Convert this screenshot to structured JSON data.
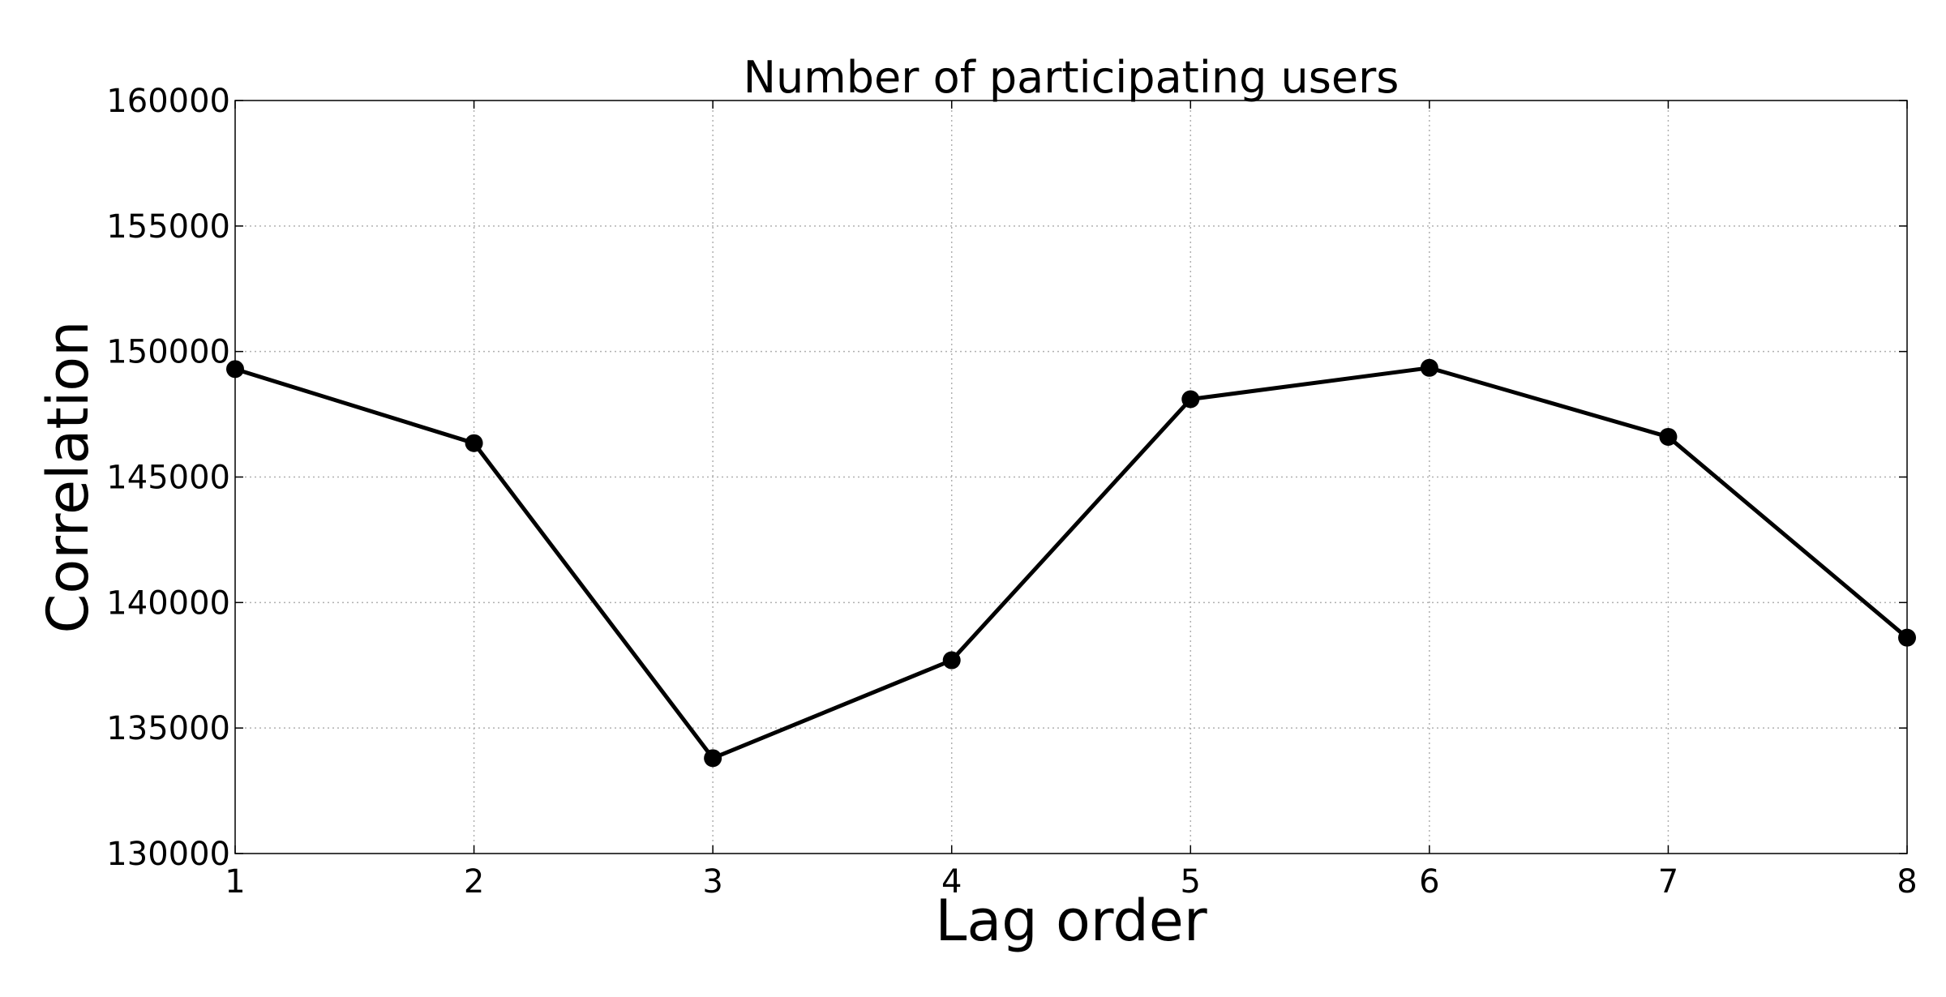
{
  "chart_data": {
    "type": "line",
    "title": "Number of participating users",
    "xlabel": "Lag order",
    "ylabel": "Correlation",
    "x": [
      1,
      2,
      3,
      4,
      5,
      6,
      7,
      8
    ],
    "series": [
      {
        "values": [
          149300,
          146350,
          133800,
          137700,
          148100,
          149350,
          146600,
          138600
        ]
      }
    ],
    "xlim": [
      1,
      8
    ],
    "ylim": [
      130000,
      160000
    ],
    "xticks": [
      1,
      2,
      3,
      4,
      5,
      6,
      7,
      8
    ],
    "yticks": [
      130000,
      135000,
      140000,
      145000,
      150000,
      155000,
      160000
    ],
    "grid": true,
    "line_color": "#000000",
    "marker": "circle"
  }
}
